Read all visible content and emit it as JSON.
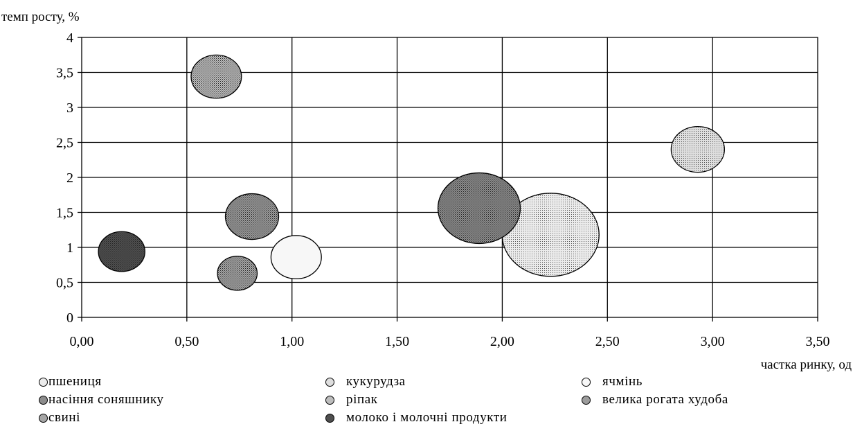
{
  "chart_data": {
    "type": "bubble",
    "ylabel": "темп росту, %",
    "xlabel": "частка ринку, од",
    "xlim": [
      0,
      3.5
    ],
    "ylim": [
      0,
      4
    ],
    "grid": true,
    "x_ticks": [
      "0,00",
      "0,50",
      "1,00",
      "1,50",
      "2,00",
      "2,50",
      "3,00",
      "3,50"
    ],
    "y_ticks": [
      "0",
      "0,5",
      "1",
      "1,5",
      "2",
      "2,5",
      "3",
      "3,5",
      "4"
    ],
    "legend_position": "bottom",
    "series": [
      {
        "name": "пшениця",
        "x": 2.23,
        "y": 1.18,
        "size": 1.0,
        "fill": "#ebebeb",
        "pattern": "fine-dots"
      },
      {
        "name": "кукурудза",
        "x": 2.93,
        "y": 2.4,
        "size": 0.55,
        "fill": "#dedede",
        "pattern": "fine-dots"
      },
      {
        "name": "ячмінь",
        "x": 1.02,
        "y": 0.86,
        "size": 0.52,
        "fill": "#f7f7f7",
        "pattern": "none"
      },
      {
        "name": "насіння соняшнику",
        "x": 1.89,
        "y": 1.56,
        "size": 0.85,
        "fill": "#8c8c8c",
        "pattern": "dots"
      },
      {
        "name": "ріпак",
        "x": 0.64,
        "y": 3.44,
        "size": 0.52,
        "fill": "#bdbdbd",
        "pattern": "dots"
      },
      {
        "name": "велика рогата худоба",
        "x": 0.81,
        "y": 1.44,
        "size": 0.55,
        "fill": "#9c9c9c",
        "pattern": "dots"
      },
      {
        "name": "свині",
        "x": 0.74,
        "y": 0.63,
        "size": 0.41,
        "fill": "#a6a6a6",
        "pattern": "dots"
      },
      {
        "name": "молоко і молочні продукти",
        "x": 0.19,
        "y": 0.94,
        "size": 0.48,
        "fill": "#4f4f4f",
        "pattern": "dots"
      }
    ]
  }
}
